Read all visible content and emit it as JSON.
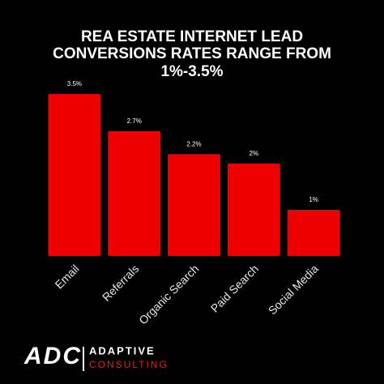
{
  "chart_data": {
    "type": "bar",
    "title": [
      "REA ESTATE INTERNET LEAD",
      "CONVERSIONS RATES RANGE FROM",
      "1%-3.5%"
    ],
    "categories": [
      "Email",
      "Referrals",
      "Organic Search",
      "Paid Search",
      "Social Media"
    ],
    "values": [
      3.5,
      2.7,
      2.2,
      2,
      1
    ],
    "value_labels": [
      "3.5%",
      "2.7%",
      "2.2%",
      "2%",
      "1%"
    ],
    "color": "#ee0000",
    "ylim": [
      0,
      3.5
    ]
  },
  "brand": {
    "mark": "ADC",
    "name": "ADAPTIVE",
    "tagline": "CONSULTING"
  }
}
